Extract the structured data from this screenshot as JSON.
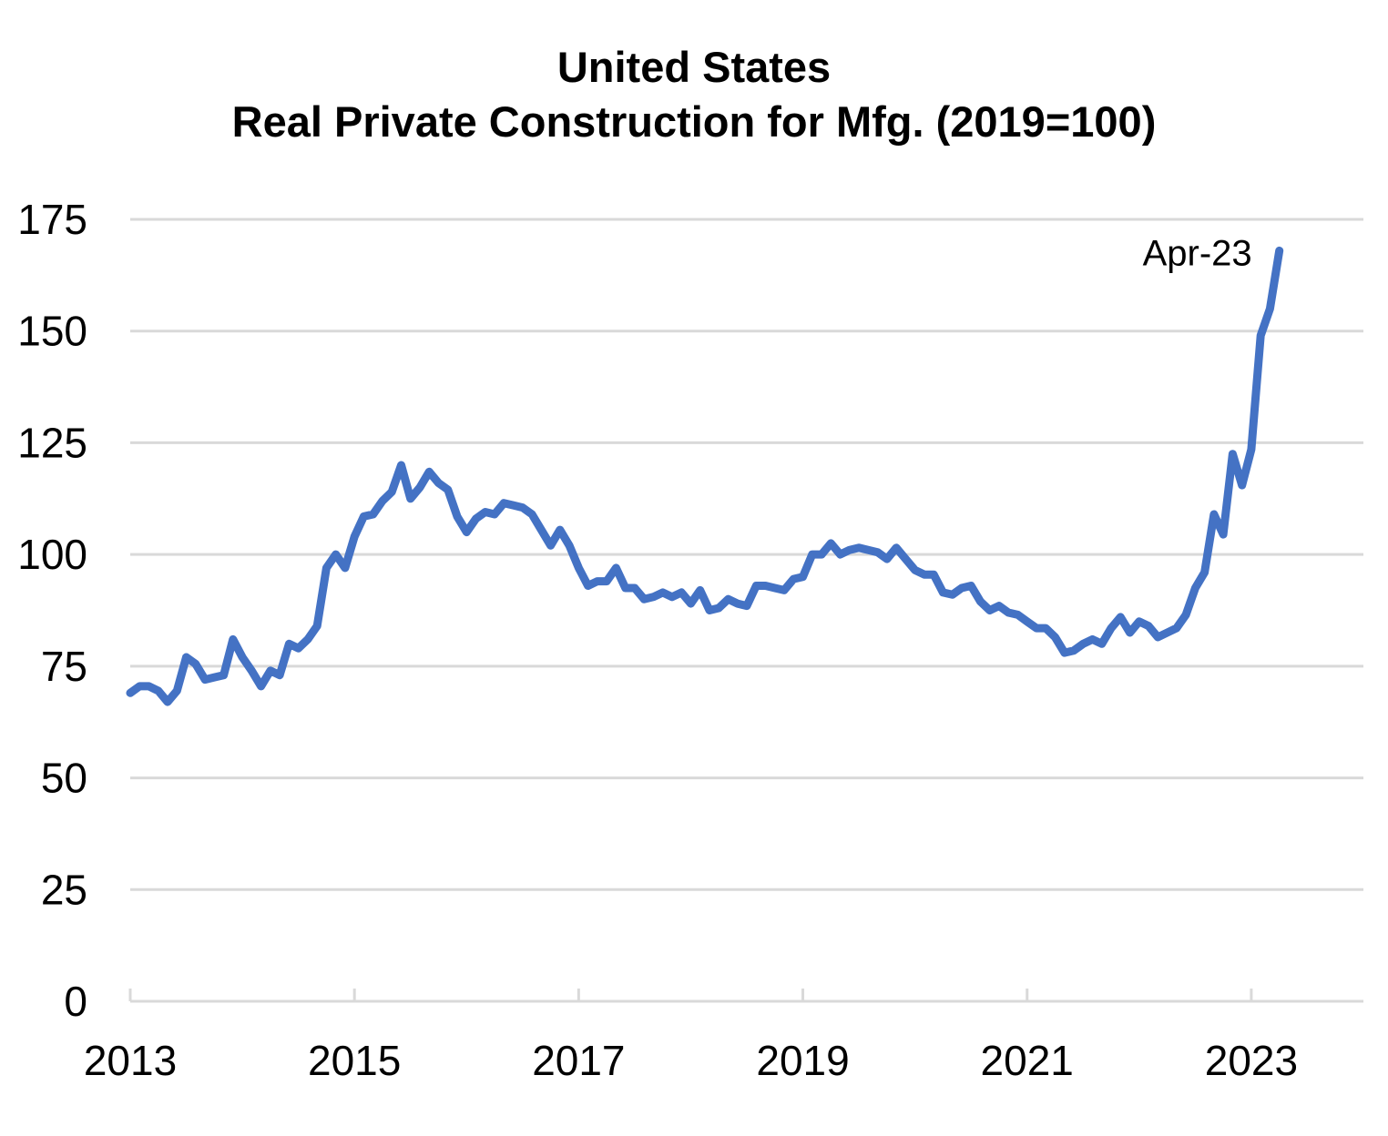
{
  "chart_data": {
    "type": "line",
    "title": "United States",
    "subtitle": "Real Private Construction for Mfg. (2019=100)",
    "xlabel": "",
    "ylabel": "",
    "ylim": [
      0,
      175
    ],
    "yticks": [
      0,
      25,
      50,
      75,
      100,
      125,
      150,
      175
    ],
    "xticks": [
      "2013",
      "2015",
      "2017",
      "2019",
      "2021",
      "2023"
    ],
    "xlim": [
      "2013-01",
      "2024-01"
    ],
    "grid": "horizontal",
    "legend": "none",
    "line_color": "#4472C4",
    "grid_color": "#D9D9D9",
    "annotation": {
      "text": "Apr-23",
      "at": "2023-04"
    },
    "series": [
      {
        "x": [
          "2013-01",
          "2013-02",
          "2013-03",
          "2013-04",
          "2013-05",
          "2013-06",
          "2013-07",
          "2013-08",
          "2013-09",
          "2013-10",
          "2013-11",
          "2013-12",
          "2014-01",
          "2014-02",
          "2014-03",
          "2014-04",
          "2014-05",
          "2014-06",
          "2014-07",
          "2014-08",
          "2014-09",
          "2014-10",
          "2014-11",
          "2014-12",
          "2015-01",
          "2015-02",
          "2015-03",
          "2015-04",
          "2015-05",
          "2015-06",
          "2015-07",
          "2015-08",
          "2015-09",
          "2015-10",
          "2015-11",
          "2015-12",
          "2016-01",
          "2016-02",
          "2016-03",
          "2016-04",
          "2016-05",
          "2016-06",
          "2016-07",
          "2016-08",
          "2016-09",
          "2016-10",
          "2016-11",
          "2016-12",
          "2017-01",
          "2017-02",
          "2017-03",
          "2017-04",
          "2017-05",
          "2017-06",
          "2017-07",
          "2017-08",
          "2017-09",
          "2017-10",
          "2017-11",
          "2017-12",
          "2018-01",
          "2018-02",
          "2018-03",
          "2018-04",
          "2018-05",
          "2018-06",
          "2018-07",
          "2018-08",
          "2018-09",
          "2018-10",
          "2018-11",
          "2018-12",
          "2019-01",
          "2019-02",
          "2019-03",
          "2019-04",
          "2019-05",
          "2019-06",
          "2019-07",
          "2019-08",
          "2019-09",
          "2019-10",
          "2019-11",
          "2019-12",
          "2020-01",
          "2020-02",
          "2020-03",
          "2020-04",
          "2020-05",
          "2020-06",
          "2020-07",
          "2020-08",
          "2020-09",
          "2020-10",
          "2020-11",
          "2020-12",
          "2021-01",
          "2021-02",
          "2021-03",
          "2021-04",
          "2021-05",
          "2021-06",
          "2021-07",
          "2021-08",
          "2021-09",
          "2021-10",
          "2021-11",
          "2021-12",
          "2022-01",
          "2022-02",
          "2022-03",
          "2022-04",
          "2022-05",
          "2022-06",
          "2022-07",
          "2022-08",
          "2022-09",
          "2022-10",
          "2022-11",
          "2022-12",
          "2023-01",
          "2023-02",
          "2023-03",
          "2023-04"
        ],
        "values": [
          69,
          70.5,
          70.5,
          69.5,
          67,
          69.5,
          77,
          75.5,
          72,
          72.5,
          73,
          81,
          77,
          74,
          70.5,
          74,
          73,
          80,
          79,
          81,
          84,
          97,
          100,
          97,
          104,
          108.5,
          109,
          112,
          114,
          120,
          112.5,
          115,
          118.5,
          116,
          114.5,
          108.5,
          105,
          108,
          109.5,
          109,
          111.5,
          111,
          110.5,
          109,
          105.5,
          102,
          105.5,
          102,
          97,
          93,
          94,
          94,
          97,
          92.5,
          92.5,
          90,
          90.5,
          91.5,
          90.5,
          91.5,
          89,
          92,
          87.5,
          88,
          90,
          89,
          88.5,
          93,
          93,
          92.5,
          92,
          94.5,
          95,
          100,
          100,
          102.5,
          100,
          101,
          101.5,
          101,
          100.5,
          99,
          101.5,
          99,
          96.5,
          95.5,
          95.5,
          91.5,
          91,
          92.5,
          93,
          89.5,
          87.5,
          88.5,
          87,
          86.5,
          85,
          83.5,
          83.5,
          81.5,
          78,
          78.5,
          80,
          81,
          80,
          83.5,
          86,
          82.5,
          85,
          84,
          81.5,
          82.5,
          83.5,
          86.5,
          92.5,
          96,
          109,
          104.5,
          122.5,
          115.5,
          123.5,
          149,
          155,
          168
        ]
      }
    ]
  }
}
